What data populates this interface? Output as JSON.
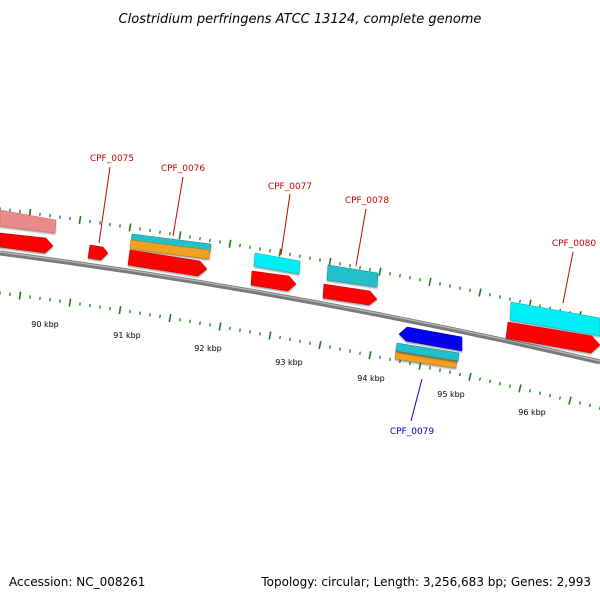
{
  "title": "Clostridium perfringens ATCC 13124, complete genome",
  "footer": {
    "accession": "Accession: NC_008261",
    "info": "Topology: circular; Length: 3,256,683 bp; Genes: 2,993"
  },
  "scale_labels": [
    "90 kbp",
    "91 kbp",
    "92 kbp",
    "93 kbp",
    "94 kbp",
    "95 kbp",
    "96 kbp"
  ],
  "gene_labels": [
    {
      "text": "CPF_0075",
      "strand": "forward"
    },
    {
      "text": "CPF_0076",
      "strand": "forward"
    },
    {
      "text": "CPF_0077",
      "strand": "forward"
    },
    {
      "text": "CPF_0078",
      "strand": "forward"
    },
    {
      "text": "CPF_0079",
      "strand": "reverse"
    },
    {
      "text": "CPF_0080",
      "strand": "forward"
    }
  ],
  "colors": {
    "backbone": "#7f7f7f",
    "cds": "#ff0000",
    "cds_faded": "#e88080",
    "reverse_cds": "#0000ee",
    "cyan_feature": "#00e8f0",
    "teal_feature": "#20c0c8",
    "orange_feature": "#f0a020",
    "tick": "#1a7a1a",
    "forward_label": "#cc0000",
    "reverse_label": "#0000cc"
  }
}
